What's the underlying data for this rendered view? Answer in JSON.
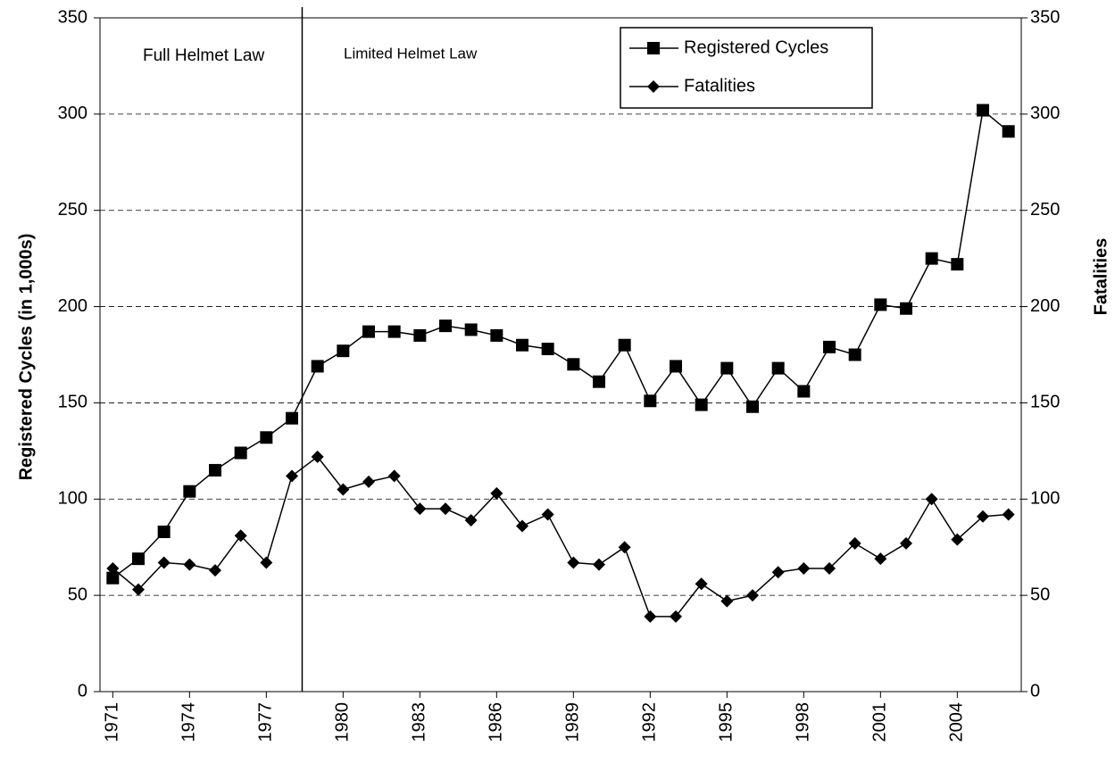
{
  "chart_data": {
    "type": "line",
    "x": [
      1971,
      1972,
      1973,
      1974,
      1975,
      1976,
      1977,
      1978,
      1979,
      1980,
      1981,
      1982,
      1983,
      1984,
      1985,
      1986,
      1987,
      1988,
      1989,
      1990,
      1991,
      1992,
      1993,
      1994,
      1995,
      1996,
      1997,
      1998,
      1999,
      2000,
      2001,
      2002,
      2003,
      2004,
      2005,
      2006
    ],
    "series": [
      {
        "name": "Registered Cycles",
        "color": "#000000",
        "marker": "square",
        "values": [
          59,
          69,
          83,
          104,
          115,
          124,
          132,
          142,
          169,
          177,
          187,
          187,
          185,
          190,
          188,
          185,
          180,
          178,
          170,
          161,
          180,
          151,
          169,
          149,
          168,
          148,
          168,
          156,
          179,
          175,
          201,
          199,
          225,
          222,
          302,
          291
        ]
      },
      {
        "name": "Fatalities",
        "color": "#000000",
        "marker": "diamond",
        "axis": "y2",
        "values": [
          64,
          53,
          67,
          66,
          63,
          81,
          67,
          112,
          122,
          105,
          109,
          112,
          95,
          95,
          89,
          103,
          86,
          92,
          67,
          66,
          75,
          39,
          39,
          56,
          47,
          50,
          62,
          64,
          64,
          77,
          69,
          77,
          100,
          79,
          91,
          92
        ]
      }
    ],
    "xlim": [
      1970.5,
      2006.5
    ],
    "xticks": [
      1971,
      1974,
      1977,
      1980,
      1983,
      1986,
      1989,
      1992,
      1995,
      1998,
      2001,
      2004
    ],
    "ylim": [
      0,
      350
    ],
    "yticks": [
      0,
      50,
      100,
      150,
      200,
      250,
      300,
      350
    ],
    "y2lim": [
      0,
      350
    ],
    "y2ticks": [
      0,
      50,
      100,
      150,
      200,
      250,
      300,
      350
    ],
    "ylabel": "Registered Cycles (in 1,000s)",
    "y2label": "Fatalities",
    "grid": true,
    "legend": "top-right",
    "law_change_x": 1978.4,
    "annotations": [
      "Full Helmet Law",
      "Limited Helmet Law"
    ]
  }
}
